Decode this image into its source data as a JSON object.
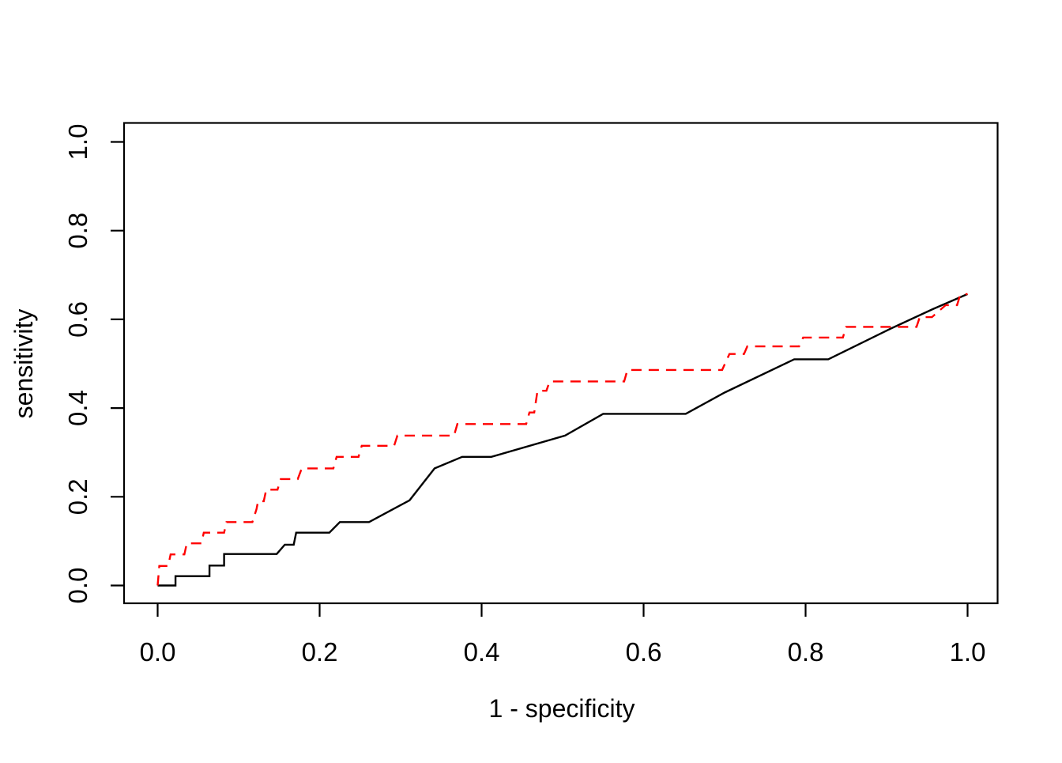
{
  "chart_data": {
    "type": "line",
    "subtype": "roc-step-curves",
    "title": "",
    "xlabel": "1 - specificity",
    "ylabel": "sensitivity",
    "xlim": [
      0.0,
      1.0
    ],
    "ylim": [
      0.0,
      1.0
    ],
    "grid": false,
    "legend_position": "none",
    "background_color": "#ffffff",
    "box_color": "#000000",
    "x_ticks": {
      "values": [
        0.0,
        0.2,
        0.4,
        0.6,
        0.8,
        1.0
      ],
      "labels": [
        "0.0",
        "0.2",
        "0.4",
        "0.6",
        "0.8",
        "1.0"
      ]
    },
    "y_ticks": {
      "values": [
        0.0,
        0.2,
        0.4,
        0.6,
        0.8,
        1.0
      ],
      "labels": [
        "0.0",
        "0.2",
        "0.4",
        "0.6",
        "0.8",
        "1.0"
      ]
    },
    "series": [
      {
        "name": "roc-curve-black-solid",
        "color": "#000000",
        "line_style": "solid",
        "points": [
          [
            0,
            0
          ],
          [
            0.022,
            0
          ],
          [
            0.022,
            0.021
          ],
          [
            0.064,
            0.021
          ],
          [
            0.064,
            0.045
          ],
          [
            0.082,
            0.045
          ],
          [
            0.082,
            0.071
          ],
          [
            0.147,
            0.071
          ],
          [
            0.157,
            0.092
          ],
          [
            0.168,
            0.092
          ],
          [
            0.171,
            0.119
          ],
          [
            0.212,
            0.119
          ],
          [
            0.225,
            0.143
          ],
          [
            0.261,
            0.143
          ],
          [
            0.311,
            0.192
          ],
          [
            0.342,
            0.264
          ],
          [
            0.376,
            0.29
          ],
          [
            0.412,
            0.29
          ],
          [
            0.503,
            0.338
          ],
          [
            0.55,
            0.387
          ],
          [
            0.652,
            0.387
          ],
          [
            0.7,
            0.435
          ],
          [
            0.786,
            0.51
          ],
          [
            0.828,
            0.51
          ],
          [
            0.905,
            0.579
          ],
          [
            0.957,
            0.623
          ],
          [
            1,
            0.657
          ]
        ]
      },
      {
        "name": "roc-curve-red-dashed",
        "color": "#FF0000",
        "line_style": "dashed",
        "points": [
          [
            0,
            0
          ],
          [
            0.002,
            0.044
          ],
          [
            0.013,
            0.044
          ],
          [
            0.016,
            0.07
          ],
          [
            0.033,
            0.07
          ],
          [
            0.036,
            0.095
          ],
          [
            0.054,
            0.095
          ],
          [
            0.057,
            0.119
          ],
          [
            0.082,
            0.119
          ],
          [
            0.085,
            0.143
          ],
          [
            0.117,
            0.143
          ],
          [
            0.122,
            0.172
          ],
          [
            0.124,
            0.19
          ],
          [
            0.131,
            0.19
          ],
          [
            0.134,
            0.216
          ],
          [
            0.148,
            0.216
          ],
          [
            0.152,
            0.24
          ],
          [
            0.173,
            0.24
          ],
          [
            0.178,
            0.264
          ],
          [
            0.217,
            0.264
          ],
          [
            0.221,
            0.29
          ],
          [
            0.248,
            0.29
          ],
          [
            0.252,
            0.315
          ],
          [
            0.292,
            0.315
          ],
          [
            0.296,
            0.338
          ],
          [
            0.366,
            0.338
          ],
          [
            0.37,
            0.364
          ],
          [
            0.455,
            0.364
          ],
          [
            0.459,
            0.39
          ],
          [
            0.465,
            0.39
          ],
          [
            0.469,
            0.439
          ],
          [
            0.48,
            0.439
          ],
          [
            0.484,
            0.46
          ],
          [
            0.576,
            0.46
          ],
          [
            0.58,
            0.486
          ],
          [
            0.697,
            0.486
          ],
          [
            0.706,
            0.522
          ],
          [
            0.724,
            0.522
          ],
          [
            0.728,
            0.539
          ],
          [
            0.792,
            0.539
          ],
          [
            0.797,
            0.559
          ],
          [
            0.846,
            0.559
          ],
          [
            0.85,
            0.583
          ],
          [
            0.937,
            0.583
          ],
          [
            0.941,
            0.605
          ],
          [
            0.956,
            0.605
          ],
          [
            0.973,
            0.632
          ],
          [
            0.987,
            0.632
          ],
          [
            0.991,
            0.656
          ],
          [
            1,
            0.657
          ]
        ]
      }
    ]
  }
}
